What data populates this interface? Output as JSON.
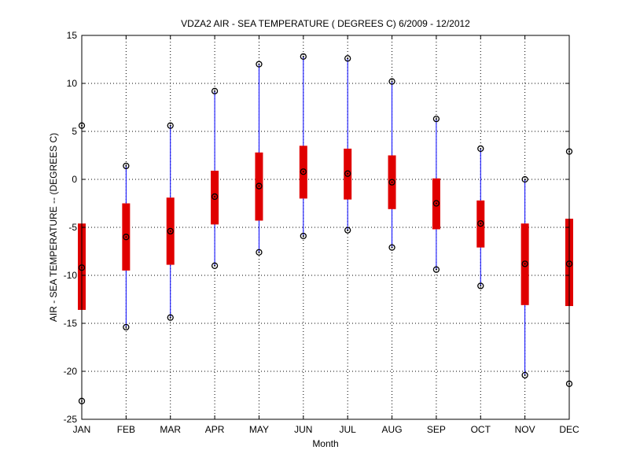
{
  "chart_data": {
    "type": "box",
    "title": "VDZA2  AIR - SEA TEMPERATURE ( DEGREES C) 6/2009 - 12/2012",
    "xlabel": "Month",
    "ylabel": "AIR - SEA TEMPERATURE -- (DEGREES C)",
    "ylim": [
      -25,
      15
    ],
    "yticks": [
      -25,
      -20,
      -15,
      -10,
      -5,
      0,
      5,
      10,
      15
    ],
    "grid": true,
    "categories": [
      "JAN",
      "FEB",
      "MAR",
      "APR",
      "MAY",
      "JUN",
      "JUL",
      "AUG",
      "SEP",
      "OCT",
      "NOV",
      "DEC"
    ],
    "series": [
      {
        "min": [
          -23.1,
          -15.4,
          -14.4,
          -9.0,
          -7.6,
          -5.9,
          -5.3,
          -7.1,
          -9.4,
          -11.1,
          -20.4,
          -21.3
        ],
        "q1": [
          -13.6,
          -9.5,
          -8.9,
          -4.7,
          -4.3,
          -2.0,
          -2.1,
          -3.1,
          -5.2,
          -7.1,
          -13.1,
          -13.2
        ],
        "median": [
          -9.2,
          -6.0,
          -5.4,
          -1.8,
          -0.7,
          0.8,
          0.6,
          -0.3,
          -2.5,
          -4.6,
          -8.8,
          -8.8
        ],
        "q3": [
          -4.6,
          -2.5,
          -1.9,
          0.9,
          2.8,
          3.5,
          3.2,
          2.5,
          0.1,
          -2.2,
          -4.6,
          -4.1
        ],
        "max": [
          5.6,
          1.4,
          5.6,
          9.2,
          12.0,
          12.8,
          12.6,
          10.2,
          6.3,
          3.2,
          0.0,
          2.9
        ]
      }
    ],
    "colors": {
      "whisker": "#0000ff",
      "box": "#e00000",
      "marker": "#000000",
      "grid": "#000000"
    }
  }
}
